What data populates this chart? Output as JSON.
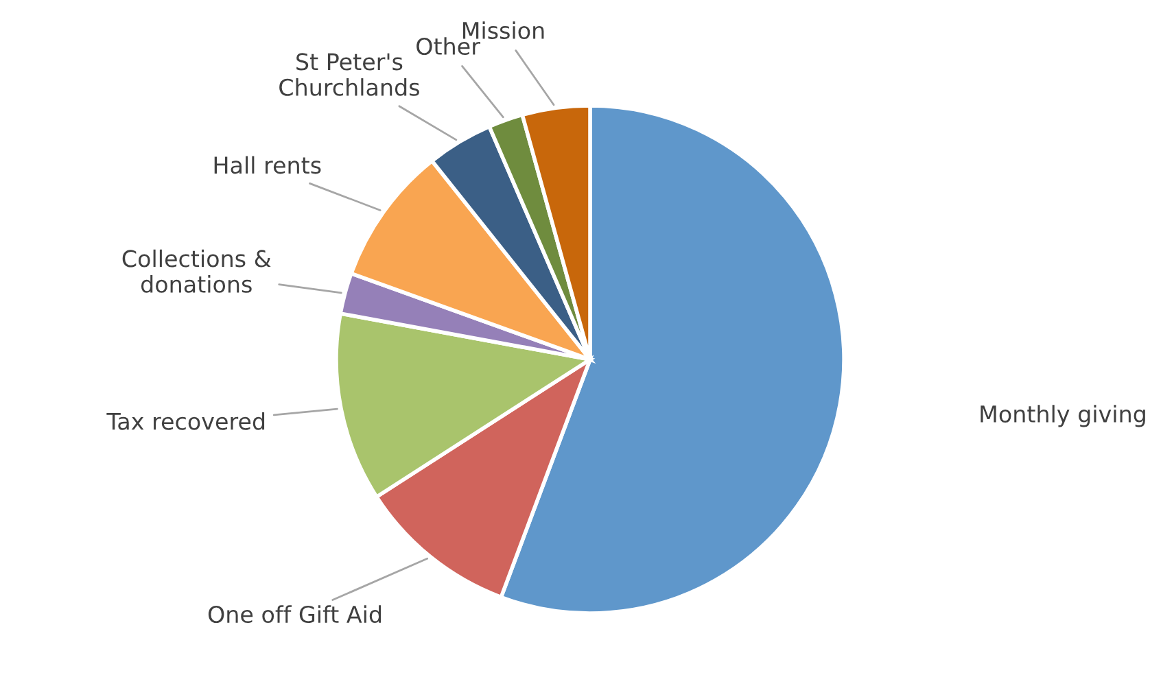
{
  "chart_data": {
    "type": "pie",
    "categories": [
      "Monthly giving",
      "One off Gift Aid",
      "Tax recovered",
      "Collections &\ndonations",
      "Hall rents",
      "St Peter's\nChurchlands",
      "Other",
      "Mission"
    ],
    "values": [
      55.7,
      10.2,
      12.0,
      2.6,
      8.8,
      4.2,
      2.2,
      4.3
    ],
    "colors": [
      "#5f97cb",
      "#d0645c",
      "#a9c46c",
      "#9580b8",
      "#f9a551",
      "#3b5f86",
      "#6f8c3e",
      "#c8670b"
    ]
  }
}
